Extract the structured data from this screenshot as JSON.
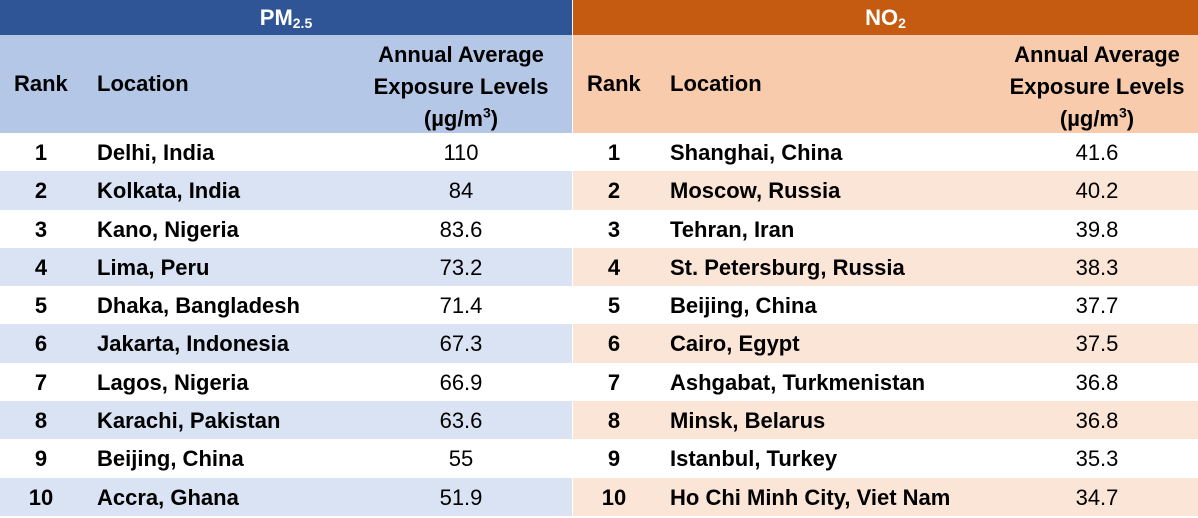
{
  "pm": {
    "title_main": "PM",
    "title_sub": "2.5",
    "headers": {
      "rank": "Rank",
      "location": "Location",
      "value_line1": "Annual Average",
      "value_line2": "Exposure Levels",
      "value_line3_pre": "(µg/m",
      "value_line3_sup": "3",
      "value_line3_post": ")"
    },
    "rows": [
      {
        "rank": "1",
        "location": "Delhi, India",
        "value": "110"
      },
      {
        "rank": "2",
        "location": "Kolkata, India",
        "value": "84"
      },
      {
        "rank": "3",
        "location": "Kano, Nigeria",
        "value": "83.6"
      },
      {
        "rank": "4",
        "location": "Lima, Peru",
        "value": "73.2"
      },
      {
        "rank": "5",
        "location": "Dhaka, Bangladesh",
        "value": "71.4"
      },
      {
        "rank": "6",
        "location": "Jakarta, Indonesia",
        "value": "67.3"
      },
      {
        "rank": "7",
        "location": "Lagos, Nigeria",
        "value": "66.9"
      },
      {
        "rank": "8",
        "location": "Karachi, Pakistan",
        "value": "63.6"
      },
      {
        "rank": "9",
        "location": "Beijing, China",
        "value": "55"
      },
      {
        "rank": "10",
        "location": "Accra, Ghana",
        "value": "51.9"
      }
    ]
  },
  "no": {
    "title_main": "NO",
    "title_sub": "2",
    "headers": {
      "rank": "Rank",
      "location": "Location",
      "value_line1": "Annual Average",
      "value_line2": "Exposure Levels",
      "value_line3_pre": "(µg/m",
      "value_line3_sup": "3",
      "value_line3_post": ")"
    },
    "rows": [
      {
        "rank": "1",
        "location": "Shanghai, China",
        "value": "41.6"
      },
      {
        "rank": "2",
        "location": "Moscow, Russia",
        "value": "40.2"
      },
      {
        "rank": "3",
        "location": "Tehran, Iran",
        "value": "39.8"
      },
      {
        "rank": "4",
        "location": "St. Petersburg, Russia",
        "value": "38.3"
      },
      {
        "rank": "5",
        "location": "Beijing, China",
        "value": "37.7"
      },
      {
        "rank": "6",
        "location": "Cairo, Egypt",
        "value": "37.5"
      },
      {
        "rank": "7",
        "location": "Ashgabat, Turkmenistan",
        "value": "36.8"
      },
      {
        "rank": "8",
        "location": "Minsk, Belarus",
        "value": "36.8"
      },
      {
        "rank": "9",
        "location": "Istanbul, Turkey",
        "value": "35.3"
      },
      {
        "rank": "10",
        "location": "Ho Chi Minh City, Viet Nam",
        "value": "34.7"
      }
    ]
  },
  "colors": {
    "pm_band": "#2f5597",
    "pm_header": "#b4c7e7",
    "pm_alt_row": "#dae3f3",
    "no_band": "#c55a11",
    "no_header": "#f8cbad",
    "no_alt_row": "#fbe5d6"
  }
}
